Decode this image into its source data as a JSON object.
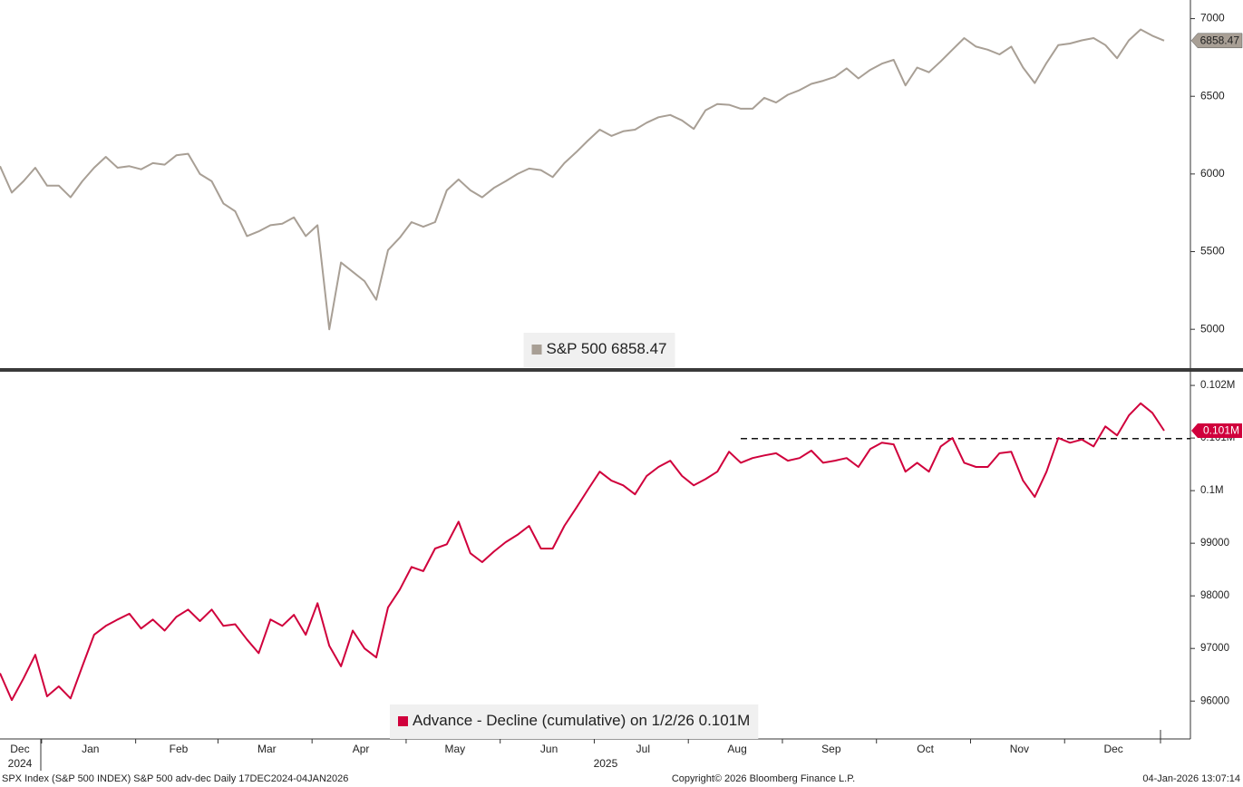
{
  "chart_data": [
    {
      "type": "line",
      "series": [
        {
          "name": "S&P 500",
          "color": "#a89f95",
          "values": [
            6050,
            5880,
            5953,
            6040,
            5925,
            5925,
            5850,
            5953,
            6040,
            6110,
            6040,
            6050,
            6030,
            6070,
            6060,
            6120,
            6130,
            6000,
            5953,
            5810,
            5760,
            5600,
            5630,
            5670,
            5680,
            5720,
            5600,
            5670,
            5000,
            5430,
            5370,
            5310,
            5190,
            5510,
            5590,
            5690,
            5660,
            5690,
            5895,
            5965,
            5895,
            5850,
            5910,
            5953,
            6000,
            6035,
            6025,
            5980,
            6070,
            6140,
            6215,
            6285,
            6245,
            6275,
            6285,
            6330,
            6365,
            6380,
            6345,
            6290,
            6410,
            6450,
            6445,
            6420,
            6420,
            6490,
            6460,
            6510,
            6540,
            6580,
            6600,
            6625,
            6680,
            6615,
            6670,
            6710,
            6735,
            6570,
            6685,
            6655,
            6725,
            6800,
            6875,
            6820,
            6800,
            6770,
            6820,
            6685,
            6585,
            6715,
            6830,
            6840,
            6860,
            6875,
            6830,
            6745,
            6860,
            6930,
            6890,
            6858.47
          ]
        }
      ],
      "ylim": [
        4750,
        7120
      ],
      "yticks": [
        5000,
        5500,
        6000,
        6500,
        7000
      ]
    },
    {
      "type": "line",
      "series": [
        {
          "name": "Advance - Decline (cumulative) on 1/2/26",
          "color": "#d0003c",
          "last_value_label": "0.101M",
          "values": [
            96530,
            96020,
            96430,
            96880,
            96090,
            96280,
            96050,
            96660,
            97260,
            97430,
            97550,
            97660,
            97380,
            97550,
            97340,
            97600,
            97740,
            97520,
            97740,
            97430,
            97460,
            97170,
            96910,
            97550,
            97430,
            97640,
            97260,
            97860,
            97050,
            96660,
            97340,
            97000,
            96830,
            97780,
            98120,
            98550,
            98470,
            98900,
            98980,
            99410,
            98810,
            98640,
            98840,
            99020,
            99160,
            99330,
            98900,
            98900,
            99330,
            99670,
            100020,
            100360,
            100190,
            100100,
            99930,
            100280,
            100450,
            100570,
            100280,
            100100,
            100220,
            100360,
            100740,
            100530,
            100620,
            100670,
            100710,
            100570,
            100620,
            100760,
            100530,
            100570,
            100620,
            100450,
            100790,
            100910,
            100880,
            100360,
            100530,
            100360,
            100840,
            101000,
            100530,
            100450,
            100450,
            100710,
            100740,
            100190,
            99880,
            100360,
            101000,
            100910,
            100970,
            100840,
            101220,
            101050,
            101430,
            101660,
            101480,
            101140
          ]
        }
      ],
      "ylim": [
        95280,
        102260
      ],
      "yticks": [
        96000,
        97000,
        98000,
        99000,
        {
          "value": 100000,
          "label": "0.1M"
        },
        {
          "value": 101000,
          "label": "0.101M"
        },
        {
          "value": 102000,
          "label": "0.102M"
        }
      ],
      "reference_line": {
        "value": 100990,
        "style": "dashed"
      }
    }
  ],
  "x_axis": {
    "categories": [
      "Dec",
      null,
      null,
      null,
      "Jan",
      null,
      null,
      null,
      null,
      null,
      null,
      null,
      "Feb",
      null,
      null,
      null,
      null,
      null,
      null,
      "Mar",
      null,
      null,
      null,
      null,
      null,
      null,
      null,
      "Apr",
      null,
      null,
      null,
      null,
      null,
      null,
      null,
      "May",
      null,
      null,
      null,
      null,
      null,
      null,
      null,
      "Jun",
      null,
      null,
      null,
      null,
      null,
      null,
      null,
      "Jul",
      null,
      null,
      null,
      null,
      null,
      null,
      null,
      "Aug",
      null,
      null,
      null,
      null,
      null,
      null,
      null,
      "Sep",
      null,
      null,
      null,
      null,
      null,
      null,
      null,
      "Oct",
      null,
      null,
      null,
      null,
      null,
      null,
      null,
      "Nov",
      null,
      null,
      null,
      null,
      null,
      null,
      null,
      "Dec",
      null,
      null,
      null,
      null,
      null,
      null,
      null,
      null
    ],
    "years": [
      "2024",
      "2025"
    ]
  },
  "footer": {
    "left": "SPX Index (S&P 500 INDEX) S&P 500 adv-dec Daily 17DEC2024-04JAN2026",
    "center": "Copyright© 2026 Bloomberg Finance L.P.",
    "right": "04-Jan-2026 13:07:14"
  }
}
